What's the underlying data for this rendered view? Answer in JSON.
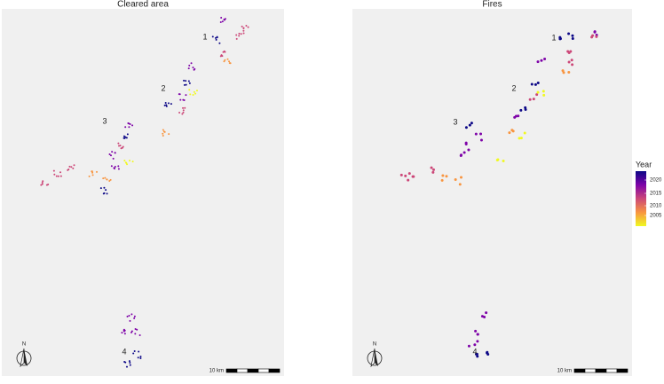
{
  "panels": [
    {
      "title": "Cleared area",
      "site_labels": [
        "1",
        "2",
        "3",
        "4"
      ],
      "north": "N",
      "scale_label": "10 km"
    },
    {
      "title": "Fires",
      "site_labels": [
        "1",
        "2",
        "3",
        "4"
      ],
      "north": "N",
      "scale_label": "10 km"
    }
  ],
  "legend": {
    "title": "Year",
    "ticks": [
      "2020",
      "2015",
      "2010",
      "2005"
    ],
    "colors": [
      "#0d0887",
      "#7e03a8",
      "#cc4778",
      "#f89540",
      "#f0f921"
    ]
  }
}
